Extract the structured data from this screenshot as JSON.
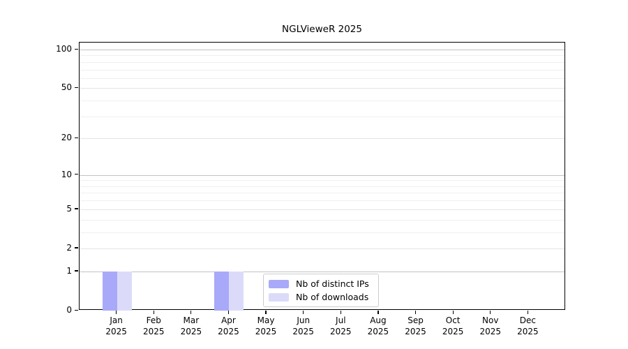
{
  "chart_data": {
    "type": "bar",
    "title": "NGLVieweR 2025",
    "x_axis": {
      "months": [
        "Jan",
        "Feb",
        "Mar",
        "Apr",
        "May",
        "Jun",
        "Jul",
        "Aug",
        "Sep",
        "Oct",
        "Nov",
        "Dec"
      ],
      "year": "2025"
    },
    "y_axis": {
      "scale": "symlog",
      "tick_values": [
        0,
        1,
        2,
        5,
        10,
        20,
        50,
        100
      ],
      "tick_labels": [
        "0",
        "1",
        "2",
        "5",
        "10",
        "20",
        "50",
        "100"
      ],
      "gridline_values": [
        1,
        2,
        3,
        4,
        5,
        6,
        7,
        8,
        9,
        10,
        20,
        30,
        40,
        50,
        60,
        70,
        80,
        90,
        100
      ],
      "decade_values": [
        1,
        10,
        100
      ],
      "range": [
        0,
        113
      ]
    },
    "series": [
      {
        "name": "Nb of distinct IPs",
        "color": "#a9a9f9",
        "values": [
          1,
          0,
          0,
          1,
          0,
          0,
          0,
          0,
          0,
          0,
          0,
          0
        ]
      },
      {
        "name": "Nb of downloads",
        "color": "#dbdbf9",
        "values": [
          1,
          0,
          0,
          1,
          0,
          0,
          0,
          0,
          0,
          0,
          0,
          0
        ]
      }
    ],
    "legend": {
      "position": "inside-bottom-center",
      "entries": [
        "Nb of distinct IPs",
        "Nb of downloads"
      ]
    },
    "grid": "horizontal",
    "colors": {
      "grid_decade": "#c2c2c2",
      "grid_labeled": "#e4e4e4",
      "grid_minor": "#efefef",
      "axis": "#000000",
      "background": "#ffffff"
    }
  }
}
